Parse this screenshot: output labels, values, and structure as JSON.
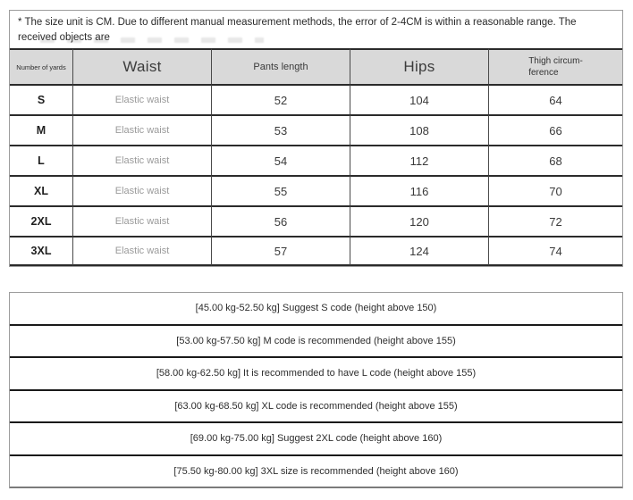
{
  "colors": {
    "header_bg": "#d9d9d9",
    "border_dark": "#2b2b2b",
    "border_light": "#9c9c9c"
  },
  "disclaimer": {
    "text": "* The size unit is CM. Due to different manual measurement methods, the error of 2-4CM is within a reasonable range. The received objects are"
  },
  "size_table": {
    "headers": [
      "Number of yards",
      "Waist",
      "Pants length",
      "Hips",
      "Thigh circum-\nference"
    ],
    "rows": [
      {
        "size": "S",
        "waist": "Elastic waist",
        "pants_length": "52",
        "hips": "104",
        "thigh_circumference": "64"
      },
      {
        "size": "M",
        "waist": "Elastic waist",
        "pants_length": "53",
        "hips": "108",
        "thigh_circumference": "66"
      },
      {
        "size": "L",
        "waist": "Elastic waist",
        "pants_length": "54",
        "hips": "112",
        "thigh_circumference": "68"
      },
      {
        "size": "XL",
        "waist": "Elastic waist",
        "pants_length": "55",
        "hips": "116",
        "thigh_circumference": "70"
      },
      {
        "size": "2XL",
        "waist": "Elastic waist",
        "pants_length": "56",
        "hips": "120",
        "thigh_circumference": "72"
      },
      {
        "size": "3XL",
        "waist": "Elastic waist",
        "pants_length": "57",
        "hips": "124",
        "thigh_circumference": "74"
      }
    ]
  },
  "recommendations": [
    "[45.00 kg-52.50 kg] Suggest S code (height above 150)",
    "[53.00 kg-57.50 kg] M code is recommended (height above 155)",
    "[58.00 kg-62.50 kg] It is recommended to have L code (height above 155)",
    "[63.00 kg-68.50 kg] XL code is recommended (height above 155)",
    "[69.00 kg-75.00 kg] Suggest 2XL code (height above 160)",
    "[75.50 kg-80.00 kg] 3XL size is recommended (height above 160)"
  ]
}
